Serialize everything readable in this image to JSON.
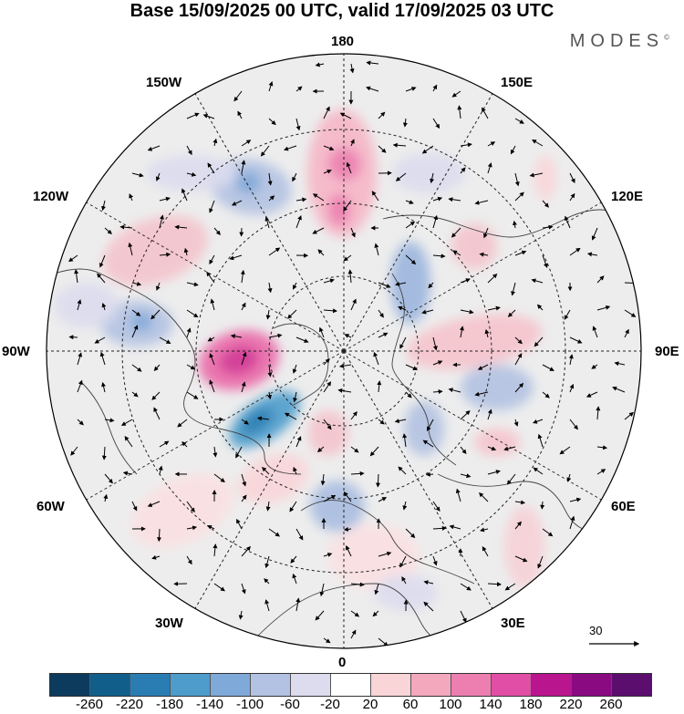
{
  "header": {
    "title": "Base 15/09/2025 00 UTC, valid 17/09/2025 03 UTC",
    "brand": "MODES",
    "brand_mark": "©"
  },
  "map": {
    "projection": "north-polar-stereographic",
    "longitude_labels": {
      "top": "180",
      "bottom": "0",
      "left": "90W",
      "right": "90E",
      "upper_left_1": "150W",
      "upper_left_2": "120W",
      "upper_right_1": "150E",
      "upper_right_2": "120E",
      "lower_left_1": "60W",
      "lower_left_2": "30W",
      "lower_right_1": "60E",
      "lower_right_2": "30E"
    },
    "fields": "shaded anomaly with wind vectors",
    "reference_vector_label": "30"
  },
  "colorbar": {
    "labels": [
      "-260",
      "-220",
      "-180",
      "-140",
      "-100",
      "-60",
      "-20",
      "20",
      "60",
      "100",
      "140",
      "180",
      "220",
      "260"
    ],
    "colors": [
      "#0d3b5e",
      "#115e8a",
      "#2a7db3",
      "#4d9ccc",
      "#7fa9d8",
      "#b3c2e2",
      "#dcdcee",
      "#ffffff",
      "#f9d5d8",
      "#f4a8bd",
      "#ec7fb0",
      "#e04fa5",
      "#b9158e",
      "#8a0a82",
      "#5b0e6e"
    ]
  }
}
